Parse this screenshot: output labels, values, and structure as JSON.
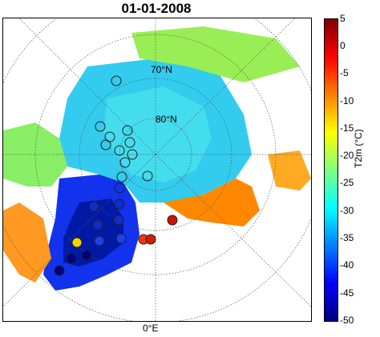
{
  "title": "01-01-2008",
  "map": {
    "grid_labels": [
      "70°N",
      "80°N"
    ],
    "meridian_label": "0°E"
  },
  "colorbar": {
    "label": "T2m (°C)",
    "ticks": [
      "5",
      "0",
      "-5",
      "-10",
      "-15",
      "-20",
      "-25",
      "-30",
      "-35",
      "-40",
      "-45",
      "-50"
    ],
    "colors": [
      "#00007f",
      "#0000ff",
      "#007fff",
      "#00ffff",
      "#7fff7f",
      "#ffff00",
      "#ff7f00",
      "#ff0000",
      "#7f0000"
    ]
  }
}
